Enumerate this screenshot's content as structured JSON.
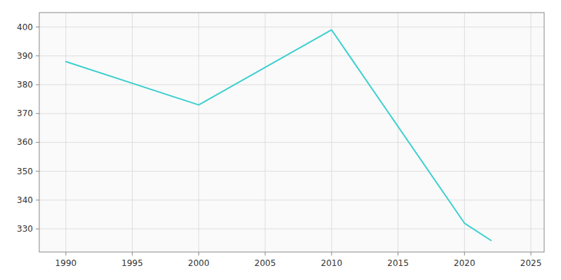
{
  "chart_data": {
    "type": "line",
    "x": [
      1990,
      2000,
      2010,
      2020,
      2022
    ],
    "values": [
      388,
      373,
      399,
      332,
      326
    ],
    "color": "#3DCFCF",
    "xlim": [
      1988,
      2026
    ],
    "ylim": [
      322,
      405
    ],
    "xticks": [
      1990,
      1995,
      2000,
      2005,
      2010,
      2015,
      2020,
      2025
    ],
    "yticks": [
      330,
      340,
      350,
      360,
      370,
      380,
      390,
      400
    ],
    "grid": true
  }
}
